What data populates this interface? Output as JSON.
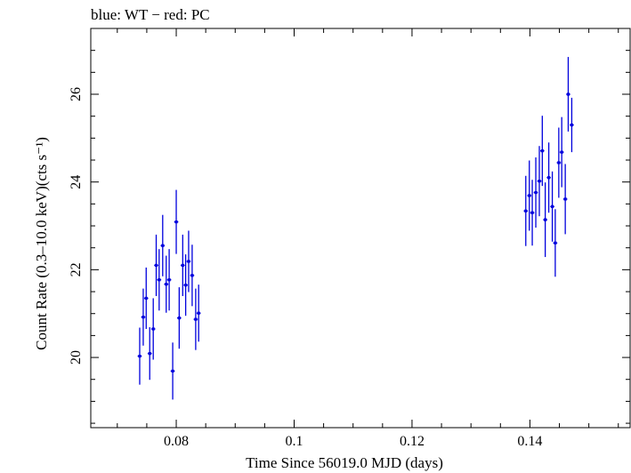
{
  "chart_data": {
    "type": "scatter",
    "title": "blue: WT − red: PC",
    "xlabel": "Time Since 56019.0 MJD (days)",
    "ylabel": "Count Rate (0.3–10.0 keV)(cts s⁻¹)",
    "xlim": [
      0.0655,
      0.157
    ],
    "ylim": [
      18.4,
      27.5
    ],
    "xticks": [
      {
        "value": 0.08,
        "label": "0.08"
      },
      {
        "value": 0.1,
        "label": "0.1"
      },
      {
        "value": 0.12,
        "label": "0.12"
      },
      {
        "value": 0.14,
        "label": "0.14"
      }
    ],
    "yticks": [
      {
        "value": 20,
        "label": "20"
      },
      {
        "value": 22,
        "label": "22"
      },
      {
        "value": 24,
        "label": "24"
      },
      {
        "value": 26,
        "label": "26"
      }
    ],
    "grid": false,
    "series": [
      {
        "color": "#0000dd",
        "x_error": 0.00035,
        "points": [
          {
            "x": 0.0738,
            "y": 20.03,
            "err": 0.65
          },
          {
            "x": 0.0744,
            "y": 20.92,
            "err": 0.65
          },
          {
            "x": 0.0749,
            "y": 21.35,
            "err": 0.7
          },
          {
            "x": 0.0755,
            "y": 20.09,
            "err": 0.6
          },
          {
            "x": 0.0761,
            "y": 20.65,
            "err": 0.7
          },
          {
            "x": 0.0766,
            "y": 22.1,
            "err": 0.7
          },
          {
            "x": 0.0771,
            "y": 21.77,
            "err": 0.7
          },
          {
            "x": 0.0777,
            "y": 22.55,
            "err": 0.7
          },
          {
            "x": 0.0783,
            "y": 21.67,
            "err": 0.65
          },
          {
            "x": 0.0788,
            "y": 21.77,
            "err": 0.7
          },
          {
            "x": 0.0794,
            "y": 19.69,
            "err": 0.65
          },
          {
            "x": 0.08,
            "y": 23.09,
            "err": 0.73
          },
          {
            "x": 0.0805,
            "y": 20.9,
            "err": 0.7
          },
          {
            "x": 0.0811,
            "y": 22.1,
            "err": 0.7
          },
          {
            "x": 0.0816,
            "y": 21.65,
            "err": 0.7
          },
          {
            "x": 0.0821,
            "y": 22.19,
            "err": 0.7
          },
          {
            "x": 0.0827,
            "y": 21.87,
            "err": 0.7
          },
          {
            "x": 0.0833,
            "y": 20.87,
            "err": 0.7
          },
          {
            "x": 0.0838,
            "y": 21.01,
            "err": 0.65
          },
          {
            "x": 0.1393,
            "y": 23.34,
            "err": 0.8
          },
          {
            "x": 0.1399,
            "y": 23.69,
            "err": 0.8
          },
          {
            "x": 0.1404,
            "y": 23.3,
            "err": 0.75
          },
          {
            "x": 0.141,
            "y": 23.76,
            "err": 0.8
          },
          {
            "x": 0.1416,
            "y": 24.02,
            "err": 0.8
          },
          {
            "x": 0.1421,
            "y": 24.71,
            "err": 0.8
          },
          {
            "x": 0.1426,
            "y": 23.14,
            "err": 0.85
          },
          {
            "x": 0.1432,
            "y": 24.1,
            "err": 0.8
          },
          {
            "x": 0.1438,
            "y": 23.44,
            "err": 0.8
          },
          {
            "x": 0.1443,
            "y": 22.61,
            "err": 0.77
          },
          {
            "x": 0.1449,
            "y": 24.44,
            "err": 0.8
          },
          {
            "x": 0.1454,
            "y": 24.68,
            "err": 0.8
          },
          {
            "x": 0.146,
            "y": 23.61,
            "err": 0.8
          },
          {
            "x": 0.1465,
            "y": 26.0,
            "err": 0.85
          },
          {
            "x": 0.1471,
            "y": 25.3,
            "err": 0.62
          }
        ]
      }
    ]
  }
}
